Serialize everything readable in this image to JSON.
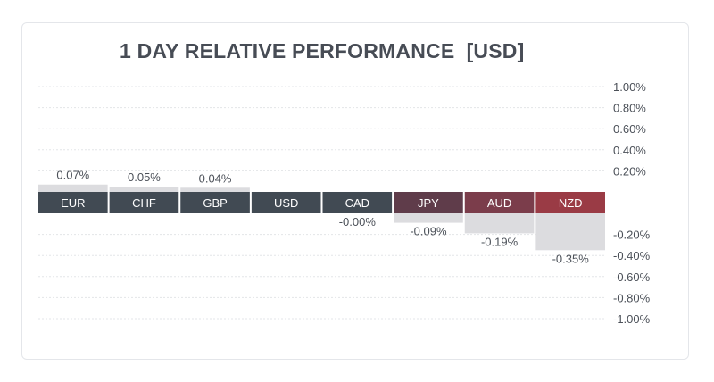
{
  "header": {
    "title": "1 DAY RELATIVE PERFORMANCE  [USD]"
  },
  "chart_data": {
    "type": "bar",
    "title": "1 DAY RELATIVE PERFORMANCE  [USD]",
    "categories": [
      "EUR",
      "CHF",
      "GBP",
      "USD",
      "CAD",
      "JPY",
      "AUD",
      "NZD"
    ],
    "values": [
      0.07,
      0.05,
      0.04,
      0.0,
      -0.001,
      -0.09,
      -0.19,
      -0.35
    ],
    "value_labels": [
      "0.07%",
      "0.05%",
      "0.04%",
      "",
      "-0.00%",
      "-0.09%",
      "-0.19%",
      "-0.35%"
    ],
    "ylim": [
      -1.0,
      1.0
    ],
    "ytick_labels_positive": [
      "1.00%",
      "0.80%",
      "0.60%",
      "0.40%",
      "0.20%"
    ],
    "ytick_labels_negative": [
      "-0.20%",
      "-0.40%",
      "-0.60%",
      "-0.80%",
      "-1.00%"
    ],
    "grid": true,
    "colors": {
      "category_boxes": [
        "#414a53",
        "#414a53",
        "#414a53",
        "#414a53",
        "#414a53",
        "#5f3c4a",
        "#7b3d4b",
        "#9a3b45"
      ],
      "bar_fill": "#dcdcdf",
      "grid": "#e3e5e8",
      "label_text": "#4b5058",
      "box_text": "#ffffff"
    }
  }
}
